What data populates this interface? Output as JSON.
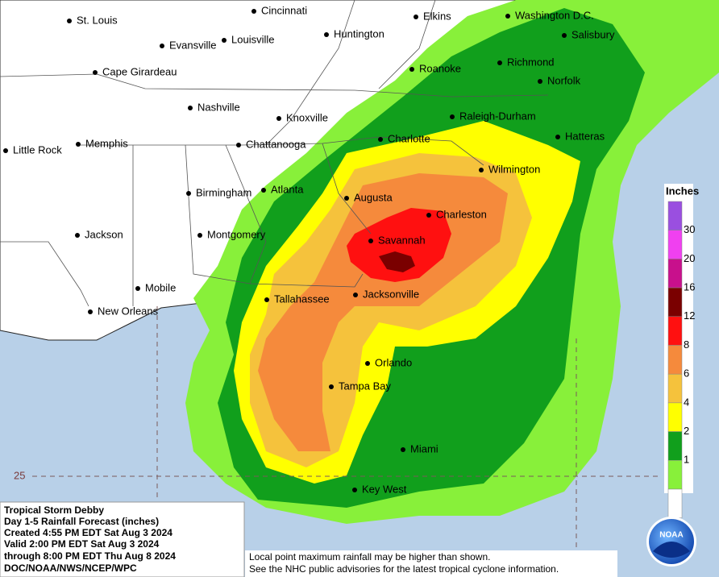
{
  "cities": [
    "St. Louis",
    "Cincinnati",
    "Elkins",
    "Washington D.C.",
    "Evansville",
    "Louisville",
    "Huntington",
    "Salisbury",
    "Cape Girardeau",
    "Roanoke",
    "Richmond",
    "Norfolk",
    "Nashville",
    "Knoxville",
    "Raleigh-Durham",
    "Little Rock",
    "Memphis",
    "Chattanooga",
    "Charlotte",
    "Hatteras",
    "Wilmington",
    "Birmingham",
    "Atlanta",
    "Augusta",
    "Charleston",
    "Jackson",
    "Montgomery",
    "Savannah",
    "Mobile",
    "New Orleans",
    "Tallahassee",
    "Jacksonville",
    "Orlando",
    "Tampa Bay",
    "Miami",
    "Key West"
  ],
  "legend": {
    "title": "Inches",
    "labels": [
      30,
      20,
      16,
      12,
      8,
      6,
      4,
      2,
      1
    ],
    "colors": [
      "#9a4fe0",
      "#f040f0",
      "#c8108c",
      "#7a0000",
      "#ff1010",
      "#f58a3c",
      "#f5c23c",
      "#ffff00",
      "#119f1c",
      "#88f03a",
      "#ffffff"
    ]
  },
  "latitude_label": "25",
  "info": {
    "lines": [
      "Tropical Storm Debby",
      "Day 1-5 Rainfall Forecast (inches)",
      "Created 4:55 PM EDT Sat Aug 3 2024",
      "Valid 2:00 PM EDT Sat Aug 3 2024",
      "through 8:00 PM EDT Thu Aug 8 2024",
      "DOC/NOAA/NWS/NCEP/WPC"
    ]
  },
  "disclaimer": {
    "lines": [
      "Local point maximum rainfall may be higher than shown.",
      "See the NHC public advisories for the latest tropical cyclone information."
    ]
  },
  "logo": "NOAA"
}
